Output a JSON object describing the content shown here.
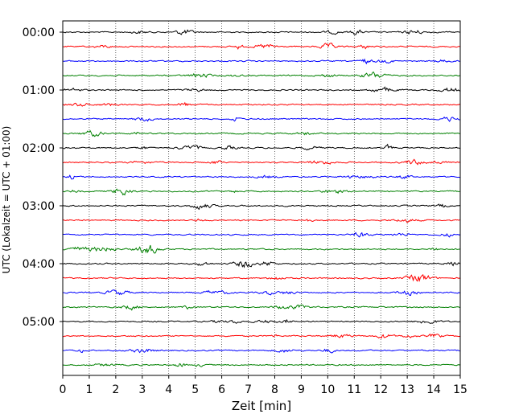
{
  "chart_data": {
    "type": "line",
    "title": "",
    "xlabel": "Zeit  [min]",
    "ylabel": "UTC (Lokalzeit = UTC + 01:00)",
    "xlim": [
      0,
      15
    ],
    "x_ticks": [
      "0",
      "1",
      "2",
      "3",
      "4",
      "5",
      "6",
      "7",
      "8",
      "9",
      "10",
      "11",
      "12",
      "13",
      "14",
      "15"
    ],
    "y_tick_labels": [
      "00:00",
      "01:00",
      "02:00",
      "03:00",
      "04:00",
      "05:00"
    ],
    "traces_per_hour": 4,
    "trace_count": 24,
    "trace_colors": [
      "#000000",
      "#ff0000",
      "#0000ff",
      "#008000"
    ],
    "grid": "vertical dotted at each minute",
    "legend": "none"
  }
}
